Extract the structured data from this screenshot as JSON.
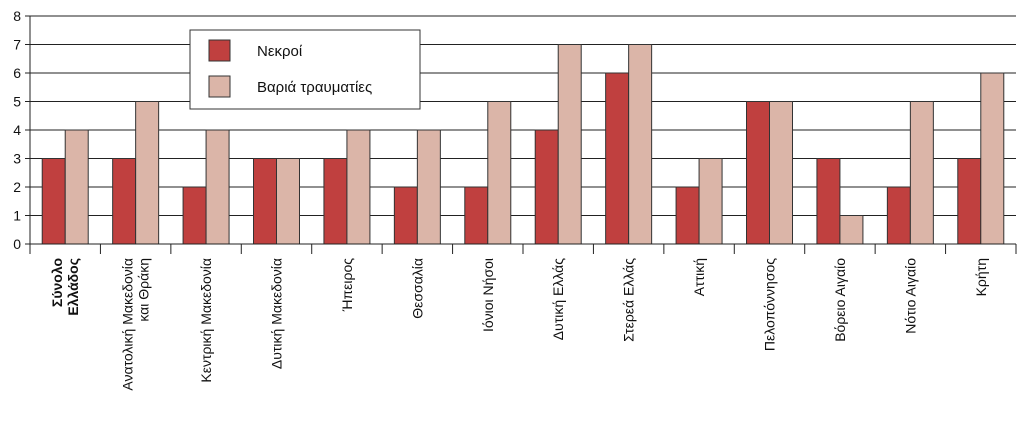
{
  "chart_data": {
    "type": "bar",
    "categories": [
      [
        "Σύνολο",
        "Ελλάδος"
      ],
      [
        "Ανατολική Μακεδονία",
        "και Θράκη"
      ],
      [
        "Κεντρική Μακεδονία"
      ],
      [
        "Δυτική Μακεδονία"
      ],
      [
        "Ήπειρος"
      ],
      [
        "Θεσσαλία"
      ],
      [
        "Ιόνιοι Νήσοι"
      ],
      [
        "Δυτική Ελλάς"
      ],
      [
        "Στερεά Ελλάς"
      ],
      [
        "Αττική"
      ],
      [
        "Πελοπόννησος"
      ],
      [
        "Βόρειο Αιγαίο"
      ],
      [
        "Νότιο Αιγαίο"
      ],
      [
        "Κρήτη"
      ]
    ],
    "bold_categories": [
      0
    ],
    "series": [
      {
        "name": "Νεκροί",
        "color": "#c0403f",
        "values": [
          3,
          3,
          2,
          3,
          3,
          2,
          2,
          4,
          6,
          2,
          5,
          3,
          2,
          3
        ]
      },
      {
        "name": "Βαριά τραυματίες",
        "color": "#dbb5a8",
        "values": [
          4,
          5,
          4,
          3,
          4,
          4,
          5,
          7,
          7,
          3,
          5,
          1,
          5,
          6
        ]
      }
    ],
    "yticks": [
      0,
      1,
      2,
      3,
      4,
      5,
      6,
      7,
      8
    ],
    "ylim": [
      0,
      8
    ],
    "grid": true,
    "legend_position": "top-left"
  }
}
